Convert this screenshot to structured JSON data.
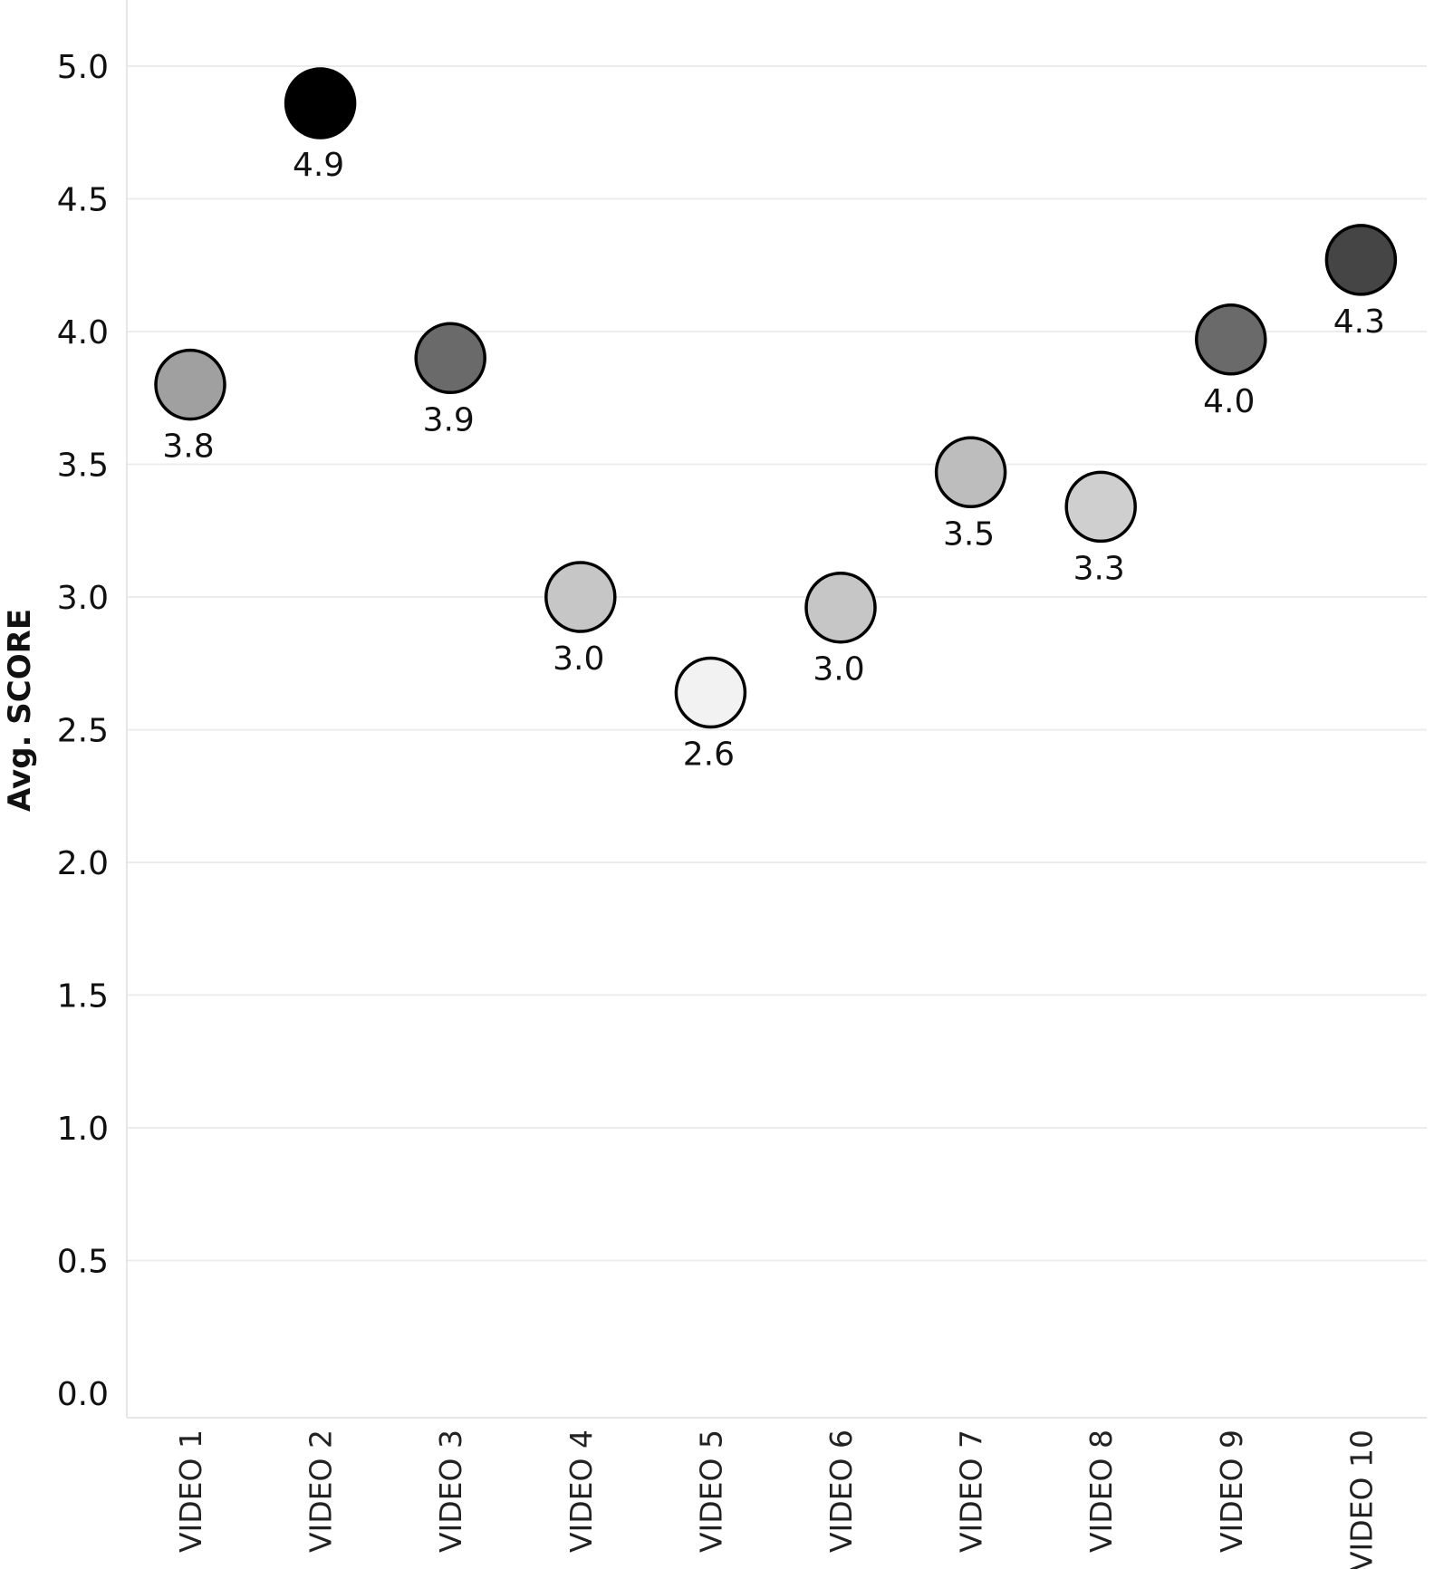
{
  "chart_data": {
    "type": "scatter",
    "title": "",
    "xlabel": "",
    "ylabel": "Avg. SCORE",
    "ylim": [
      0,
      5
    ],
    "y_ticks": [
      "0.0",
      "0.5",
      "1.0",
      "1.5",
      "2.0",
      "2.5",
      "3.0",
      "3.5",
      "4.0",
      "4.5",
      "5.0"
    ],
    "grid": true,
    "legend": "none",
    "categories": [
      "VIDEO 1",
      "VIDEO 2",
      "VIDEO 3",
      "VIDEO 4",
      "VIDEO 5",
      "VIDEO 6",
      "VIDEO 7",
      "VIDEO 8",
      "VIDEO 9",
      "VIDEO 10"
    ],
    "values": [
      3.8,
      4.86,
      3.9,
      3.0,
      2.64,
      2.96,
      3.47,
      3.34,
      3.97,
      4.27
    ],
    "data_labels": [
      "3.8",
      "4.9",
      "3.9",
      "3.0",
      "2.6",
      "3.0",
      "3.5",
      "3.3",
      "4.0",
      "4.3"
    ],
    "point_colors": [
      "#a0a0a0",
      "#000000",
      "#6a6a6a",
      "#c6c6c6",
      "#f2f2f2",
      "#c6c6c6",
      "#bdbdbd",
      "#cfcfcf",
      "#6a6a6a",
      "#454545"
    ]
  }
}
